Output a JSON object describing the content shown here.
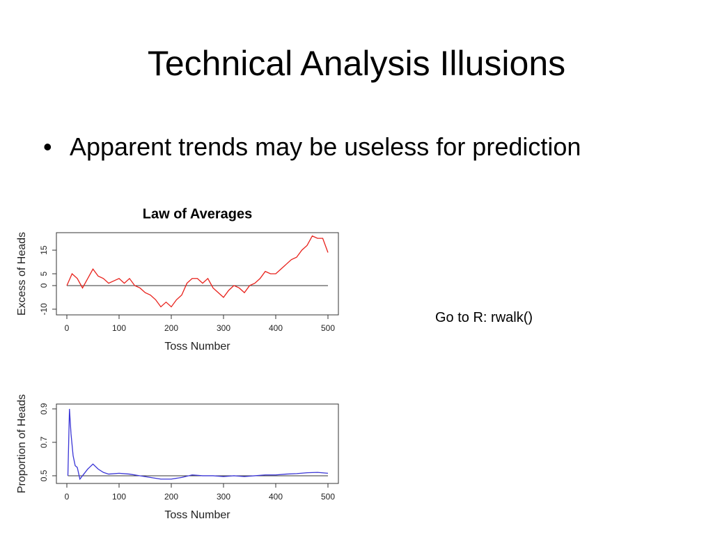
{
  "title": "Technical Analysis Illusions",
  "bullet": "Apparent trends may be useless for prediction",
  "note": "Go to R: rwalk()",
  "chart_data": [
    {
      "type": "line",
      "title": "Law of Averages",
      "xlabel": "Toss Number",
      "ylabel": "Excess of Heads",
      "x": [
        0,
        10,
        20,
        30,
        40,
        50,
        60,
        70,
        80,
        90,
        100,
        110,
        120,
        130,
        140,
        150,
        160,
        170,
        180,
        190,
        200,
        210,
        220,
        230,
        240,
        250,
        260,
        270,
        280,
        290,
        300,
        310,
        320,
        330,
        340,
        350,
        360,
        370,
        380,
        390,
        400,
        410,
        420,
        430,
        440,
        450,
        460,
        470,
        480,
        490,
        500
      ],
      "series": [
        {
          "name": "Excess of Heads",
          "color": "#e8211b",
          "values": [
            0,
            5,
            3,
            -1,
            3,
            7,
            4,
            3,
            1,
            2,
            3,
            1,
            3,
            0,
            -1,
            -3,
            -4,
            -6,
            -9,
            -7,
            -9,
            -6,
            -4,
            1,
            3,
            3,
            1,
            3,
            -1,
            -3,
            -5,
            -2,
            0,
            -1,
            -3,
            0,
            1,
            3,
            6,
            5,
            5,
            7,
            9,
            11,
            12,
            15,
            17,
            21,
            20,
            20,
            14
          ]
        }
      ],
      "hline": 0,
      "xlim": [
        -20,
        520
      ],
      "ylim": [
        -12.4,
        22.4
      ],
      "xticks": [
        0,
        100,
        200,
        300,
        400,
        500
      ],
      "yticks": [
        -10,
        0,
        5,
        15
      ]
    },
    {
      "type": "line",
      "xlabel": "Toss Number",
      "ylabel": "Proportion of Heads",
      "x": [
        2,
        5,
        8,
        12,
        16,
        20,
        25,
        30,
        40,
        50,
        60,
        70,
        80,
        100,
        120,
        140,
        160,
        180,
        200,
        220,
        240,
        260,
        280,
        300,
        320,
        340,
        360,
        380,
        400,
        420,
        440,
        460,
        480,
        500
      ],
      "series": [
        {
          "name": "Proportion of Heads",
          "color": "#3a35d6",
          "values": [
            0.5,
            0.9,
            0.75,
            0.62,
            0.56,
            0.55,
            0.48,
            0.5,
            0.54,
            0.57,
            0.54,
            0.52,
            0.51,
            0.515,
            0.51,
            0.5,
            0.49,
            0.48,
            0.48,
            0.49,
            0.505,
            0.5,
            0.5,
            0.495,
            0.5,
            0.495,
            0.5,
            0.505,
            0.505,
            0.51,
            0.513,
            0.518,
            0.52,
            0.515
          ]
        }
      ],
      "hline": 0.5,
      "xlim": [
        -20,
        520
      ],
      "ylim": [
        0.454,
        0.929
      ],
      "xticks": [
        0,
        100,
        200,
        300,
        400,
        500
      ],
      "yticks": [
        0.5,
        0.7,
        0.9
      ]
    }
  ]
}
